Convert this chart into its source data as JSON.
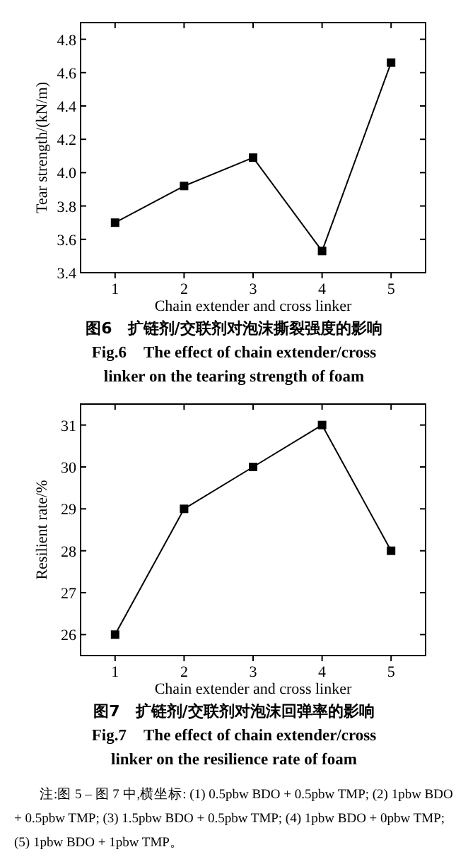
{
  "chart_data": [
    {
      "type": "line",
      "title": "图6　扩链剂/交联剂对泡沫撕裂强度的影响",
      "subtitle": "Fig.6　The effect of chain extender/cross linker on the tearing strength of foam",
      "xlabel": "Chain extender and cross linker",
      "ylabel": "Tear strength/(kN/m)",
      "x": [
        1,
        2,
        3,
        4,
        5
      ],
      "xlim": [
        0.5,
        5.5
      ],
      "xticks": [
        1,
        2,
        3,
        4,
        5
      ],
      "ylim": [
        3.4,
        4.9
      ],
      "yticks": [
        3.4,
        3.6,
        3.8,
        {
          "value": 4.0,
          "label": "4.0"
        },
        4.2,
        4.4,
        4.6,
        4.8
      ],
      "series": [
        {
          "color": "#000000",
          "values": [
            3.7,
            3.92,
            4.09,
            3.53,
            4.66
          ]
        }
      ],
      "marker": "square"
    },
    {
      "type": "line",
      "title": "图7　扩链剂/交联剂对泡沫回弹率的影响",
      "subtitle": "Fig.7　The effect of chain extender/cross linker on the resilience rate of foam",
      "xlabel": "Chain extender and cross linker",
      "ylabel": "Resilient rate/%",
      "x": [
        1,
        2,
        3,
        4,
        5
      ],
      "xlim": [
        0.5,
        5.5
      ],
      "xticks": [
        1,
        2,
        3,
        4,
        5
      ],
      "ylim": [
        25.5,
        31.5
      ],
      "yticks": [
        26,
        27,
        28,
        29,
        30,
        31
      ],
      "series": [
        {
          "color": "#000000",
          "values": [
            26,
            29,
            30,
            31,
            28
          ]
        }
      ],
      "marker": "square",
      "annotations": [
        "注:图 5 – 图 7 中,横坐标: (1) 0.5pbw BDO + 0.5pbw TMP; (2) 1pbw BDO + 0.5pbw TMP; (3) 1.5pbw BDO + 0.5pbw TMP; (4) 1pbw BDO + 0pbw TMP; (5) 1pbw BDO + 1pbw TMP。"
      ]
    }
  ]
}
